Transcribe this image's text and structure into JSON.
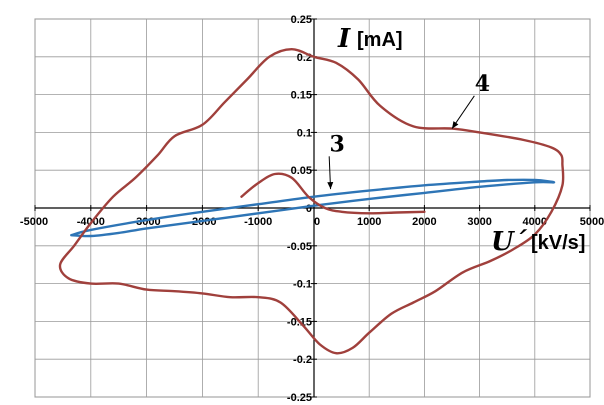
{
  "chart_data": {
    "type": "line",
    "xlabel_var": "U´",
    "xlabel_unit": "[kV/s]",
    "ylabel_var": "I",
    "ylabel_unit": "[mA]",
    "xlim": [
      -5000,
      5000
    ],
    "ylim": [
      -0.25,
      0.25
    ],
    "grid": true,
    "x_ticks": [
      -5000,
      -4000,
      -3000,
      -2000,
      -1000,
      0,
      1000,
      2000,
      3000,
      4000,
      5000
    ],
    "x_tick_labels": [
      "-5000",
      "-4000",
      "-3000",
      "-2000",
      "-1000",
      "0",
      "1000",
      "2000",
      "3000",
      "4000",
      "5000"
    ],
    "y_ticks": [
      0.25,
      0.2,
      0.15,
      0.1,
      0.05,
      0,
      -0.05,
      -0.1,
      -0.15,
      -0.2,
      -0.25
    ],
    "y_tick_labels": [
      "0.25",
      "0.2",
      "0.15",
      "0.1",
      "0.05",
      "0",
      "-0.05",
      "-0.1",
      "-0.15",
      "-0.2",
      "-0.25"
    ],
    "series": [
      {
        "name": "3",
        "color": "#2e75b6",
        "points": [
          [
            -4350,
            -0.036
          ],
          [
            -4000,
            -0.037
          ],
          [
            -3500,
            -0.033
          ],
          [
            -3000,
            -0.027
          ],
          [
            -2000,
            -0.017
          ],
          [
            -1000,
            -0.007
          ],
          [
            0,
            0.003
          ],
          [
            1000,
            0.012
          ],
          [
            2000,
            0.02
          ],
          [
            3000,
            0.028
          ],
          [
            4000,
            0.034
          ],
          [
            4350,
            0.034
          ],
          [
            4000,
            0.037
          ],
          [
            3500,
            0.037
          ],
          [
            3000,
            0.035
          ],
          [
            2000,
            0.03
          ],
          [
            1000,
            0.023
          ],
          [
            0,
            0.015
          ],
          [
            -1000,
            0.005
          ],
          [
            -2000,
            -0.005
          ],
          [
            -3000,
            -0.016
          ],
          [
            -4000,
            -0.029
          ],
          [
            -4350,
            -0.036
          ]
        ]
      },
      {
        "name": "4",
        "color": "#a0403c",
        "points": [
          [
            4500,
            0.058
          ],
          [
            4480,
            0.07
          ],
          [
            4300,
            0.08
          ],
          [
            3800,
            0.09
          ],
          [
            3000,
            0.1
          ],
          [
            2500,
            0.105
          ],
          [
            1800,
            0.108
          ],
          [
            1200,
            0.135
          ],
          [
            800,
            0.17
          ],
          [
            400,
            0.192
          ],
          [
            0,
            0.2
          ],
          [
            -400,
            0.21
          ],
          [
            -800,
            0.2
          ],
          [
            -1200,
            0.17
          ],
          [
            -1600,
            0.14
          ],
          [
            -2000,
            0.11
          ],
          [
            -2500,
            0.095
          ],
          [
            -2800,
            0.07
          ],
          [
            -3200,
            0.04
          ],
          [
            -3600,
            0.015
          ],
          [
            -4000,
            -0.02
          ],
          [
            -4300,
            -0.05
          ],
          [
            -4550,
            -0.075
          ],
          [
            -4400,
            -0.093
          ],
          [
            -4000,
            -0.1
          ],
          [
            -3500,
            -0.1
          ],
          [
            -3000,
            -0.108
          ],
          [
            -2500,
            -0.11
          ],
          [
            -2000,
            -0.113
          ],
          [
            -1500,
            -0.118
          ],
          [
            -1000,
            -0.118
          ],
          [
            -600,
            -0.125
          ],
          [
            -200,
            -0.155
          ],
          [
            100,
            -0.18
          ],
          [
            400,
            -0.192
          ],
          [
            700,
            -0.185
          ],
          [
            1000,
            -0.165
          ],
          [
            1400,
            -0.14
          ],
          [
            1800,
            -0.125
          ],
          [
            2200,
            -0.11
          ],
          [
            2700,
            -0.085
          ],
          [
            3200,
            -0.07
          ],
          [
            3600,
            -0.055
          ],
          [
            4000,
            -0.035
          ],
          [
            4300,
            -0.005
          ],
          [
            4500,
            0.03
          ],
          [
            4500,
            0.058
          ]
        ]
      },
      {
        "name": "",
        "color": "#a0403c",
        "points": [
          [
            -1300,
            0.015
          ],
          [
            -1000,
            0.033
          ],
          [
            -700,
            0.045
          ],
          [
            -400,
            0.04
          ],
          [
            -100,
            0.015
          ],
          [
            200,
            0
          ],
          [
            500,
            -0.005
          ],
          [
            1000,
            -0.007
          ],
          [
            1500,
            -0.006
          ],
          [
            2000,
            -0.005
          ]
        ]
      }
    ],
    "annotations": [
      {
        "text": "3",
        "x": 420,
        "y": 0.075,
        "arrow_to": [
          300,
          0.025
        ]
      },
      {
        "text": "4",
        "x": 3050,
        "y": 0.155,
        "arrow_to": [
          2500,
          0.105
        ]
      }
    ]
  }
}
